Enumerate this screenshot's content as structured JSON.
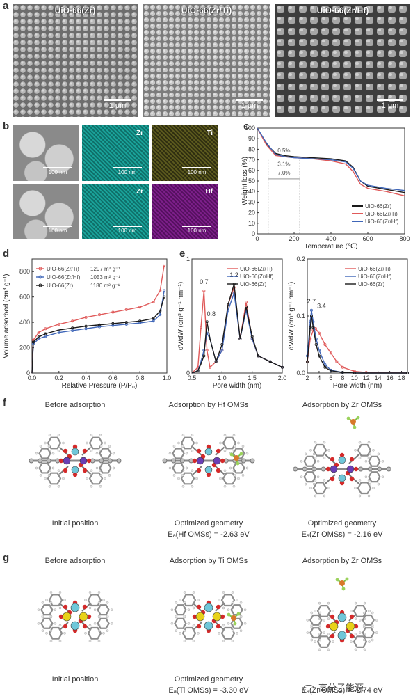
{
  "panels": {
    "a": "a",
    "b": "b",
    "c": "c",
    "d": "d",
    "e": "e",
    "f": "f",
    "g": "g"
  },
  "sem_images": [
    {
      "label": "UiO-66(Zr)",
      "scale": "1 μm"
    },
    {
      "label": "UiO-66(Zr/Ti)",
      "scale": "1 μm"
    },
    {
      "label": "UiO-66(Zr/Hf)",
      "scale": "1 μm"
    }
  ],
  "eds_rows": [
    {
      "tiles": [
        {
          "element": "",
          "scale": "100 nm",
          "kind": "sem"
        },
        {
          "element": "Zr",
          "scale": "100 nm",
          "kind": "zr"
        },
        {
          "element": "Ti",
          "scale": "100 nm",
          "kind": "ti"
        }
      ]
    },
    {
      "tiles": [
        {
          "element": "",
          "scale": "100 nm",
          "kind": "sem"
        },
        {
          "element": "Zr",
          "scale": "100 nm",
          "kind": "zr"
        },
        {
          "element": "Hf",
          "scale": "100 nm",
          "kind": "hf"
        }
      ]
    }
  ],
  "colors": {
    "zr_ti": "#e05a5a",
    "zr_hf": "#3f66b8",
    "zr": "#1a1a1a",
    "cyan_map": "#1aa39a",
    "ti_map": "#5c5a1e",
    "hf_map": "#7d1f8a"
  },
  "chart_data": [
    {
      "panel": "c",
      "type": "line",
      "xlabel": "Temperature (℃)",
      "ylabel": "Weight loss (%)",
      "xlim": [
        0,
        800
      ],
      "ylim": [
        0,
        100
      ],
      "xticks": [
        "0",
        "200",
        "400",
        "600",
        "800"
      ],
      "yticks": [
        "0",
        "10",
        "20",
        "30",
        "40",
        "50",
        "60",
        "70",
        "80",
        "90",
        "100"
      ],
      "annotations": [
        "0.5%",
        "3.1%",
        "7.0%"
      ],
      "series": [
        {
          "name": "UiO-66(Zr)",
          "color": "#1a1a1a",
          "x": [
            0,
            50,
            100,
            150,
            200,
            300,
            400,
            480,
            520,
            560,
            600,
            700,
            800
          ],
          "y": [
            100,
            85,
            76,
            74,
            73,
            72,
            71,
            69,
            63,
            50,
            45,
            42,
            39
          ]
        },
        {
          "name": "UiO-66(Zr/Ti)",
          "color": "#e05a5a",
          "x": [
            0,
            50,
            100,
            150,
            200,
            300,
            400,
            480,
            520,
            560,
            600,
            700,
            800
          ],
          "y": [
            100,
            84,
            74,
            73,
            72,
            71,
            69,
            66,
            59,
            47,
            43,
            40,
            36
          ]
        },
        {
          "name": "UiO-66(Zr/Hf)",
          "color": "#3f66b8",
          "x": [
            0,
            50,
            100,
            150,
            200,
            300,
            400,
            480,
            520,
            560,
            600,
            700,
            800
          ],
          "y": [
            100,
            86,
            75,
            73,
            72,
            71,
            70,
            68,
            62,
            50,
            46,
            43,
            41
          ]
        }
      ]
    },
    {
      "panel": "d",
      "type": "line",
      "xlabel": "Relative Pressure (P/P₀)",
      "ylabel": "Volume adsorbed (cm³ g⁻¹)",
      "xlim": [
        0,
        1.0
      ],
      "ylim": [
        0,
        900
      ],
      "xticks": [
        "0.0",
        "0.2",
        "0.4",
        "0.6",
        "0.8",
        "1.0"
      ],
      "yticks": [
        "0",
        "200",
        "400",
        "600",
        "800"
      ],
      "legend": [
        {
          "name": "UiO-66(Zr/Ti)",
          "area": "1297 m² g⁻¹"
        },
        {
          "name": "UiO-66(Zr/Hf)",
          "area": "1053 m² g⁻¹"
        },
        {
          "name": "UiO-66(Zr)",
          "area": "1180 m² g⁻¹"
        }
      ],
      "series": [
        {
          "name": "UiO-66(Zr/Ti)",
          "color": "#e05a5a",
          "x": [
            0,
            0.01,
            0.05,
            0.1,
            0.2,
            0.3,
            0.4,
            0.5,
            0.6,
            0.7,
            0.8,
            0.9,
            0.95,
            0.98
          ],
          "y": [
            0,
            260,
            320,
            350,
            385,
            410,
            440,
            460,
            480,
            500,
            520,
            560,
            650,
            850
          ]
        },
        {
          "name": "UiO-66(Zr/Hf)",
          "color": "#3f66b8",
          "x": [
            0,
            0.01,
            0.05,
            0.1,
            0.2,
            0.3,
            0.4,
            0.5,
            0.6,
            0.7,
            0.8,
            0.9,
            0.95,
            0.98
          ],
          "y": [
            0,
            230,
            270,
            290,
            320,
            335,
            350,
            365,
            375,
            385,
            395,
            410,
            460,
            650
          ]
        },
        {
          "name": "UiO-66(Zr)",
          "color": "#1a1a1a",
          "x": [
            0,
            0.01,
            0.05,
            0.1,
            0.2,
            0.3,
            0.4,
            0.5,
            0.6,
            0.7,
            0.8,
            0.9,
            0.95,
            0.98
          ],
          "y": [
            0,
            245,
            285,
            310,
            340,
            355,
            370,
            380,
            390,
            400,
            410,
            430,
            490,
            600
          ]
        }
      ]
    },
    {
      "panel": "e-left",
      "type": "line",
      "xlabel": "Pore width (nm)",
      "ylabel": "dV/dW (cm³ g⁻¹ nm⁻¹)",
      "xlim": [
        0.5,
        2.0
      ],
      "ylim": [
        0,
        1
      ],
      "xticks": [
        "0.5",
        "1.0",
        "1.5",
        "2.0"
      ],
      "yticks": [
        "0",
        "1"
      ],
      "annotations": [
        "0.7",
        "0.8",
        "1.2"
      ],
      "series": [
        {
          "name": "UiO-66(Zr/Ti)",
          "color": "#e05a5a",
          "x": [
            0.5,
            0.6,
            0.65,
            0.7,
            0.75,
            0.8,
            0.9,
            1.0,
            1.1,
            1.2,
            1.3,
            1.4,
            1.5,
            1.6,
            1.8,
            2.0
          ],
          "y": [
            0,
            0.05,
            0.4,
            0.72,
            0.2,
            0.05,
            0.1,
            0.2,
            0.6,
            0.75,
            0.3,
            0.62,
            0.3,
            0.15,
            0.1,
            0.05
          ]
        },
        {
          "name": "UiO-66(Zr/Hf)",
          "color": "#3f66b8",
          "x": [
            0.5,
            0.6,
            0.65,
            0.7,
            0.75,
            0.8,
            0.9,
            1.0,
            1.1,
            1.2,
            1.3,
            1.4,
            1.5,
            1.6,
            1.8,
            2.0
          ],
          "y": [
            0,
            0.02,
            0.1,
            0.2,
            0.35,
            0.3,
            0.1,
            0.2,
            0.55,
            0.7,
            0.3,
            0.55,
            0.3,
            0.15,
            0.1,
            0.05
          ]
        },
        {
          "name": "UiO-66(Zr)",
          "color": "#1a1a1a",
          "x": [
            0.5,
            0.6,
            0.65,
            0.7,
            0.75,
            0.8,
            0.9,
            1.0,
            1.1,
            1.2,
            1.3,
            1.4,
            1.5,
            1.6,
            1.8,
            2.0
          ],
          "y": [
            0,
            0.02,
            0.08,
            0.15,
            0.45,
            0.3,
            0.1,
            0.25,
            0.6,
            0.78,
            0.3,
            0.58,
            0.32,
            0.15,
            0.1,
            0.05
          ]
        }
      ]
    },
    {
      "panel": "e-right",
      "type": "line",
      "xlabel": "Pore width (nm)",
      "ylabel": "dV/dW (cm³ g⁻¹ nm⁻¹)",
      "xlim": [
        2,
        19
      ],
      "ylim": [
        0,
        0.2
      ],
      "xticks": [
        "2",
        "4",
        "6",
        "8",
        "10",
        "12",
        "14",
        "16",
        "18"
      ],
      "yticks": [
        "0.0",
        "0.1",
        "0.2"
      ],
      "annotations": [
        "2.7",
        "3.4"
      ],
      "series": [
        {
          "name": "UiO-66(Zr/Ti)",
          "color": "#e05a5a",
          "x": [
            2,
            2.5,
            3,
            3.4,
            4,
            5,
            6,
            7,
            8,
            10,
            12,
            19
          ],
          "y": [
            0.02,
            0.06,
            0.075,
            0.078,
            0.07,
            0.05,
            0.035,
            0.02,
            0.01,
            0.003,
            0.001,
            0
          ]
        },
        {
          "name": "UiO-66(Zr/Hf)",
          "color": "#3f66b8",
          "x": [
            2,
            2.5,
            2.7,
            3,
            3.5,
            4,
            5,
            6,
            8,
            10,
            19
          ],
          "y": [
            0.03,
            0.09,
            0.11,
            0.09,
            0.06,
            0.04,
            0.015,
            0.005,
            0.001,
            0,
            0
          ]
        },
        {
          "name": "UiO-66(Zr)",
          "color": "#1a1a1a",
          "x": [
            2,
            2.5,
            2.7,
            3,
            3.5,
            4,
            5,
            6,
            8,
            10,
            19
          ],
          "y": [
            0.02,
            0.08,
            0.1,
            0.08,
            0.05,
            0.03,
            0.01,
            0.004,
            0.001,
            0,
            0
          ]
        }
      ]
    }
  ],
  "dft_f": {
    "titles": [
      "Before adsorption",
      "Adsorption by Hf OMSs",
      "Adsorption by Zr OMSs"
    ],
    "captions": [
      "Initial position",
      "Optimized geometry",
      "Optimized geometry"
    ],
    "energies": [
      "",
      "Eₐ(Hf OMSs) = -2.63 eV",
      "Eₐ(Zr OMSs) = -2.16 eV"
    ]
  },
  "dft_g": {
    "titles": [
      "Before adsorption",
      "Adsorption by Ti OMSs",
      "Adsorption by Zr OMSs"
    ],
    "captions": [
      "Initial position",
      "Optimized geometry",
      ""
    ],
    "energies": [
      "",
      "Eₐ(Ti OMSs) = -3.30 eV",
      "Eₐ(Zr OMSs) = -2.74 eV"
    ]
  },
  "watermark": "高分子能源"
}
